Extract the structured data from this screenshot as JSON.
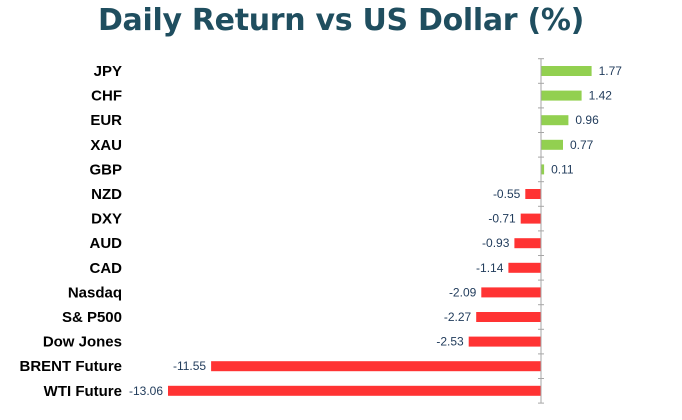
{
  "chart_data": {
    "type": "bar",
    "orientation": "horizontal",
    "title": "Daily Return vs US Dollar (%)",
    "xlabel": "",
    "ylabel": "",
    "categories": [
      "JPY",
      "CHF",
      "EUR",
      "XAU",
      "GBP",
      "NZD",
      "DXY",
      "AUD",
      "CAD",
      "Nasdaq",
      "S& P500",
      "Dow Jones",
      "BRENT Future",
      "WTI Future"
    ],
    "values": [
      1.77,
      1.42,
      0.96,
      0.77,
      0.11,
      -0.55,
      -0.71,
      -0.93,
      -1.14,
      -2.09,
      -2.27,
      -2.53,
      -11.55,
      -13.06
    ],
    "value_labels": [
      "1.77",
      "1.42",
      "0.96",
      "0.77",
      "0.11",
      "-0.55",
      "-0.71",
      "-0.93",
      "-1.14",
      "-2.09",
      "-2.27",
      "-2.53",
      "-11.55",
      "-13.06"
    ],
    "xlim": [
      -13.06,
      1.77
    ],
    "grid": false,
    "colors": {
      "positive": "#92d050",
      "negative": "#ff3333",
      "axis": "#a6a6a6",
      "title": "#1f4e5f",
      "value_text": "#1f3a5a"
    }
  }
}
